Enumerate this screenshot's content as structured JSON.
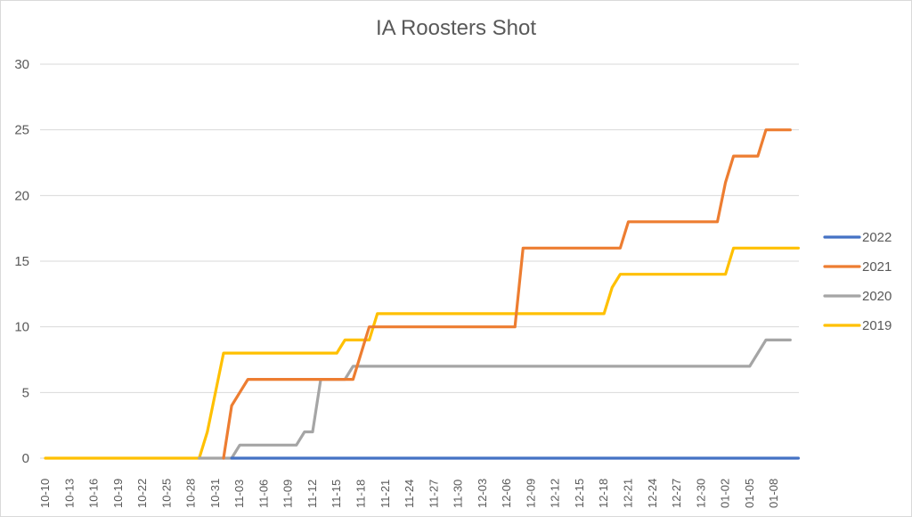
{
  "chart_data": {
    "type": "line",
    "title": "IA Roosters Shot",
    "xlabel": "",
    "ylabel": "",
    "ylim": [
      0,
      30
    ],
    "yticks": [
      0,
      5,
      10,
      15,
      20,
      25,
      30
    ],
    "grid": true,
    "legend_position": "right",
    "x_tick_labels": [
      "10-10",
      "10-13",
      "10-16",
      "10-19",
      "10-22",
      "10-25",
      "10-28",
      "10-31",
      "11-03",
      "11-06",
      "11-09",
      "11-12",
      "11-15",
      "11-18",
      "11-21",
      "11-24",
      "11-27",
      "11-30",
      "12-03",
      "12-06",
      "12-09",
      "12-12",
      "12-15",
      "12-18",
      "12-21",
      "12-24",
      "12-27",
      "12-30",
      "01-02",
      "01-05",
      "01-08"
    ],
    "x_note": "daily index 0 = 10-10, one point per day",
    "series": [
      {
        "name": "2022",
        "color": "#4472C4",
        "start_day": 23,
        "points": [
          [
            23,
            0
          ],
          [
            93,
            0
          ]
        ]
      },
      {
        "name": "2021",
        "color": "#ED7D31",
        "start_day": 22,
        "points": [
          [
            22,
            0
          ],
          [
            23,
            4
          ],
          [
            24,
            5
          ],
          [
            25,
            6
          ],
          [
            34,
            6
          ],
          [
            38,
            6
          ],
          [
            39,
            8
          ],
          [
            40,
            10
          ],
          [
            58,
            10
          ],
          [
            59,
            16
          ],
          [
            71,
            16
          ],
          [
            72,
            18
          ],
          [
            83,
            18
          ],
          [
            84,
            21
          ],
          [
            85,
            23
          ],
          [
            88,
            23
          ],
          [
            89,
            25
          ],
          [
            92,
            25
          ]
        ]
      },
      {
        "name": "2020",
        "color": "#A5A5A5",
        "start_day": 19,
        "points": [
          [
            19,
            0
          ],
          [
            23,
            0
          ],
          [
            24,
            1
          ],
          [
            31,
            1
          ],
          [
            32,
            2
          ],
          [
            33,
            2
          ],
          [
            34,
            6
          ],
          [
            37,
            6
          ],
          [
            38,
            7
          ],
          [
            87,
            7
          ],
          [
            89,
            9
          ],
          [
            92,
            9
          ]
        ]
      },
      {
        "name": "2019",
        "color": "#FFC000",
        "start_day": 0,
        "points": [
          [
            0,
            0
          ],
          [
            19,
            0
          ],
          [
            20,
            2
          ],
          [
            21,
            5
          ],
          [
            22,
            8
          ],
          [
            36,
            8
          ],
          [
            37,
            9
          ],
          [
            40,
            9
          ],
          [
            41,
            11
          ],
          [
            69,
            11
          ],
          [
            70,
            13
          ],
          [
            71,
            14
          ],
          [
            84,
            14
          ],
          [
            85,
            16
          ],
          [
            93,
            16
          ]
        ]
      }
    ]
  },
  "legend": {
    "items": [
      {
        "label": "2022",
        "color": "#4472C4"
      },
      {
        "label": "2021",
        "color": "#ED7D31"
      },
      {
        "label": "2020",
        "color": "#A5A5A5"
      },
      {
        "label": "2019",
        "color": "#FFC000"
      }
    ]
  }
}
